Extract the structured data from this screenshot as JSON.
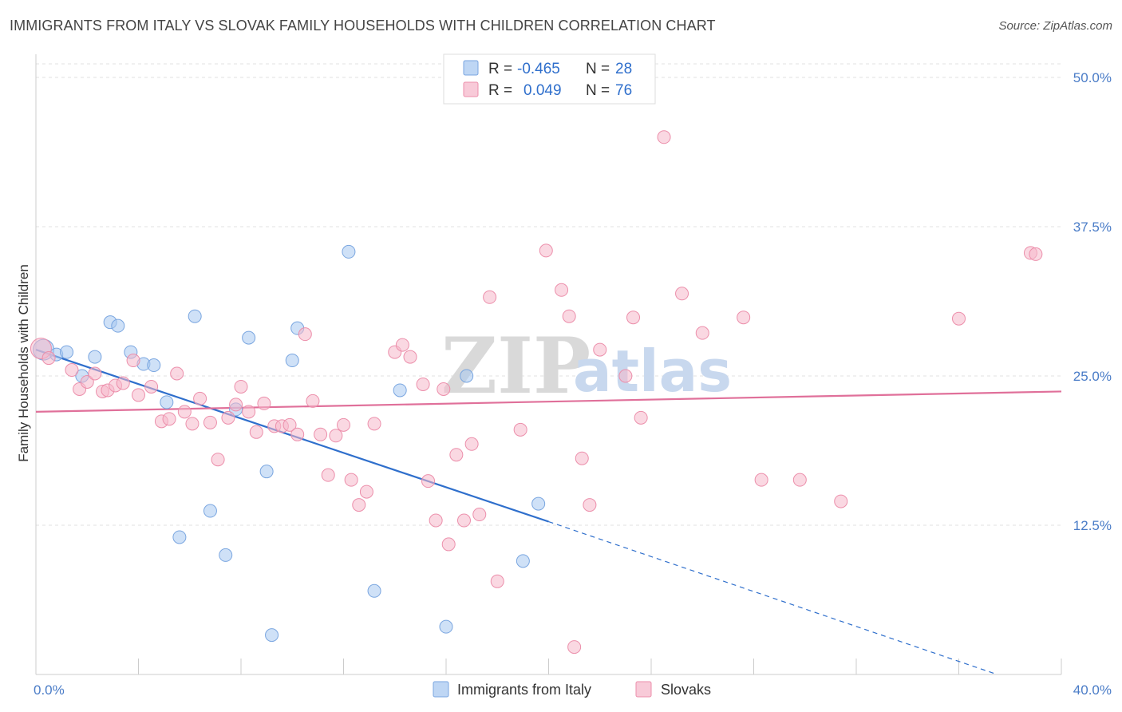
{
  "header": {
    "title": "IMMIGRANTS FROM ITALY VS SLOVAK FAMILY HOUSEHOLDS WITH CHILDREN CORRELATION CHART",
    "source": "Source: ZipAtlas.com"
  },
  "watermark": {
    "zip": "ZIP",
    "atlas": "atlas"
  },
  "legend": {
    "rows": [
      {
        "r_label": "R =",
        "r_value": "-0.465",
        "n_label": "N =",
        "n_value": "28",
        "color": "#a8c8f0"
      },
      {
        "r_label": "R =",
        "r_value": "0.049",
        "n_label": "N =",
        "n_value": "76",
        "color": "#f6b8cb"
      }
    ]
  },
  "bottom_legend": [
    {
      "label": "Immigrants from Italy",
      "color": "#a8c8f0"
    },
    {
      "label": "Slovaks",
      "color": "#f6b8cb"
    }
  ],
  "chart_data": {
    "type": "scatter",
    "title": "IMMIGRANTS FROM ITALY VS SLOVAK FAMILY HOUSEHOLDS WITH CHILDREN CORRELATION CHART",
    "xlabel": "",
    "ylabel": "Family Households with Children",
    "xlim": [
      0,
      40
    ],
    "ylim": [
      0,
      50
    ],
    "x_tick_labels": [
      "0.0%",
      "40.0%"
    ],
    "y_ticks": [
      12.5,
      25.0,
      37.5,
      50.0
    ],
    "y_tick_labels": [
      "12.5%",
      "25.0%",
      "37.5%",
      "50.0%"
    ],
    "grid": true,
    "series": [
      {
        "name": "Immigrants from Italy",
        "color": "#a8c8f0",
        "stroke": "#7aa6e0",
        "line_color": "#2f6fcc",
        "trend": {
          "x0": 0,
          "y0": 27.2,
          "x1": 20.0,
          "y1": 12.8,
          "dash_to_x": 37.5,
          "dash_to_y": 0
        },
        "points": [
          [
            0.3,
            27.2
          ],
          [
            0.8,
            26.8
          ],
          [
            1.2,
            27.0
          ],
          [
            1.8,
            25.0
          ],
          [
            2.3,
            26.6
          ],
          [
            2.9,
            29.5
          ],
          [
            3.2,
            29.2
          ],
          [
            3.7,
            27.0
          ],
          [
            4.2,
            26.0
          ],
          [
            4.6,
            25.9
          ],
          [
            5.1,
            22.8
          ],
          [
            5.6,
            11.5
          ],
          [
            6.2,
            30.0
          ],
          [
            6.8,
            13.7
          ],
          [
            7.4,
            10.0
          ],
          [
            7.8,
            22.2
          ],
          [
            8.3,
            28.2
          ],
          [
            9.0,
            17.0
          ],
          [
            9.2,
            3.3
          ],
          [
            10.0,
            26.3
          ],
          [
            10.2,
            29.0
          ],
          [
            12.2,
            35.4
          ],
          [
            13.2,
            7.0
          ],
          [
            14.2,
            23.8
          ],
          [
            16.0,
            4.0
          ],
          [
            16.8,
            25.0
          ],
          [
            19.0,
            9.5
          ],
          [
            19.6,
            14.3
          ]
        ]
      },
      {
        "name": "Slovaks",
        "color": "#f6b8cb",
        "stroke": "#ec8fab",
        "line_color": "#e0709a",
        "trend": {
          "x0": 0,
          "y0": 22.0,
          "x1": 40.0,
          "y1": 23.7
        },
        "points": [
          [
            0.2,
            27.3
          ],
          [
            0.5,
            26.5
          ],
          [
            1.4,
            25.5
          ],
          [
            1.7,
            23.9
          ],
          [
            2.0,
            24.5
          ],
          [
            2.3,
            25.2
          ],
          [
            2.6,
            23.7
          ],
          [
            2.8,
            23.8
          ],
          [
            3.1,
            24.2
          ],
          [
            3.4,
            24.4
          ],
          [
            3.8,
            26.3
          ],
          [
            4.0,
            23.4
          ],
          [
            4.5,
            24.1
          ],
          [
            4.9,
            21.2
          ],
          [
            5.2,
            21.4
          ],
          [
            5.5,
            25.2
          ],
          [
            5.8,
            22.0
          ],
          [
            6.1,
            21.0
          ],
          [
            6.4,
            23.1
          ],
          [
            6.8,
            21.1
          ],
          [
            7.1,
            18.0
          ],
          [
            7.5,
            21.5
          ],
          [
            7.8,
            22.6
          ],
          [
            8.0,
            24.1
          ],
          [
            8.3,
            22.0
          ],
          [
            8.6,
            20.3
          ],
          [
            8.9,
            22.7
          ],
          [
            9.3,
            20.8
          ],
          [
            9.6,
            20.8
          ],
          [
            9.9,
            20.9
          ],
          [
            10.2,
            20.1
          ],
          [
            10.5,
            28.5
          ],
          [
            10.8,
            22.9
          ],
          [
            11.1,
            20.1
          ],
          [
            11.4,
            16.7
          ],
          [
            11.7,
            20.0
          ],
          [
            12.0,
            20.9
          ],
          [
            12.3,
            16.3
          ],
          [
            12.6,
            14.2
          ],
          [
            12.9,
            15.3
          ],
          [
            13.2,
            21.0
          ],
          [
            14.0,
            27.0
          ],
          [
            14.3,
            27.6
          ],
          [
            14.6,
            26.6
          ],
          [
            15.1,
            24.3
          ],
          [
            15.3,
            16.2
          ],
          [
            15.6,
            12.9
          ],
          [
            15.9,
            23.9
          ],
          [
            16.1,
            10.9
          ],
          [
            16.4,
            18.4
          ],
          [
            16.7,
            12.9
          ],
          [
            17.0,
            19.3
          ],
          [
            17.3,
            13.4
          ],
          [
            17.7,
            31.6
          ],
          [
            18.0,
            7.8
          ],
          [
            18.9,
            20.5
          ],
          [
            19.9,
            35.5
          ],
          [
            20.5,
            32.2
          ],
          [
            20.8,
            30.0
          ],
          [
            21.0,
            2.3
          ],
          [
            21.3,
            18.1
          ],
          [
            21.6,
            14.2
          ],
          [
            22.0,
            27.2
          ],
          [
            23.0,
            25.0
          ],
          [
            23.3,
            29.9
          ],
          [
            23.6,
            21.5
          ],
          [
            24.5,
            45.0
          ],
          [
            25.2,
            31.9
          ],
          [
            26.0,
            28.6
          ],
          [
            27.6,
            29.9
          ],
          [
            28.3,
            16.3
          ],
          [
            31.4,
            14.5
          ],
          [
            38.8,
            35.3
          ],
          [
            39.0,
            35.2
          ],
          [
            36.0,
            29.8
          ],
          [
            29.8,
            16.3
          ]
        ]
      }
    ]
  }
}
